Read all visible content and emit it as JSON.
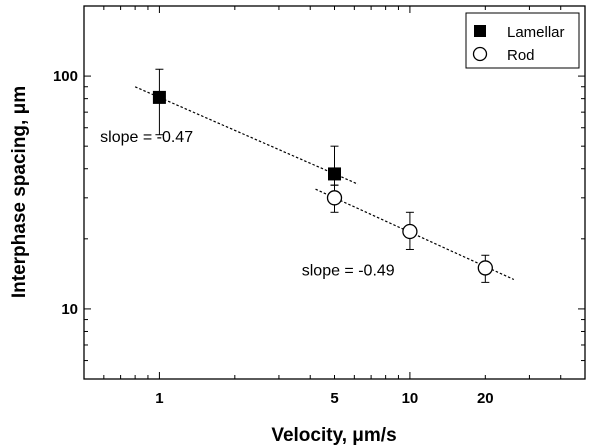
{
  "chart_data": {
    "type": "scatter",
    "title": "",
    "xlabel": "Velocity, μm/s",
    "ylabel": "Interphase spacing, μm",
    "x_scale": "log",
    "y_scale": "log",
    "xlim": [
      0.5,
      50
    ],
    "ylim": [
      5,
      200
    ],
    "x_ticks": [
      1,
      5,
      10,
      20
    ],
    "y_ticks": [
      10,
      100
    ],
    "grid": false,
    "legend_position": "top-right",
    "series": [
      {
        "name": "Lamellar",
        "marker": "filled-square",
        "color": "#000000",
        "x": [
          1,
          5
        ],
        "y": [
          81,
          38
        ],
        "err_low": [
          56,
          34
        ],
        "err_high": [
          107,
          50
        ]
      },
      {
        "name": "Rod",
        "marker": "open-circle",
        "color": "#000000",
        "x": [
          5,
          10,
          20
        ],
        "y": [
          30,
          21.5,
          15
        ],
        "err_low": [
          26,
          18,
          13
        ],
        "err_high": [
          34,
          26,
          17
        ]
      }
    ],
    "fit_lines": [
      {
        "x_start": 0.8,
        "x_end": 6.2,
        "slope": -0.47,
        "anchor_x": 1,
        "anchor_y": 81
      },
      {
        "x_start": 4.2,
        "x_end": 26,
        "slope": -0.49,
        "anchor_x": 5,
        "anchor_y": 30
      }
    ],
    "annotations": [
      {
        "text": "slope = -0.47",
        "x": 0.58,
        "y": 52
      },
      {
        "text": "slope = -0.49",
        "x": 3.7,
        "y": 13.9
      }
    ]
  }
}
